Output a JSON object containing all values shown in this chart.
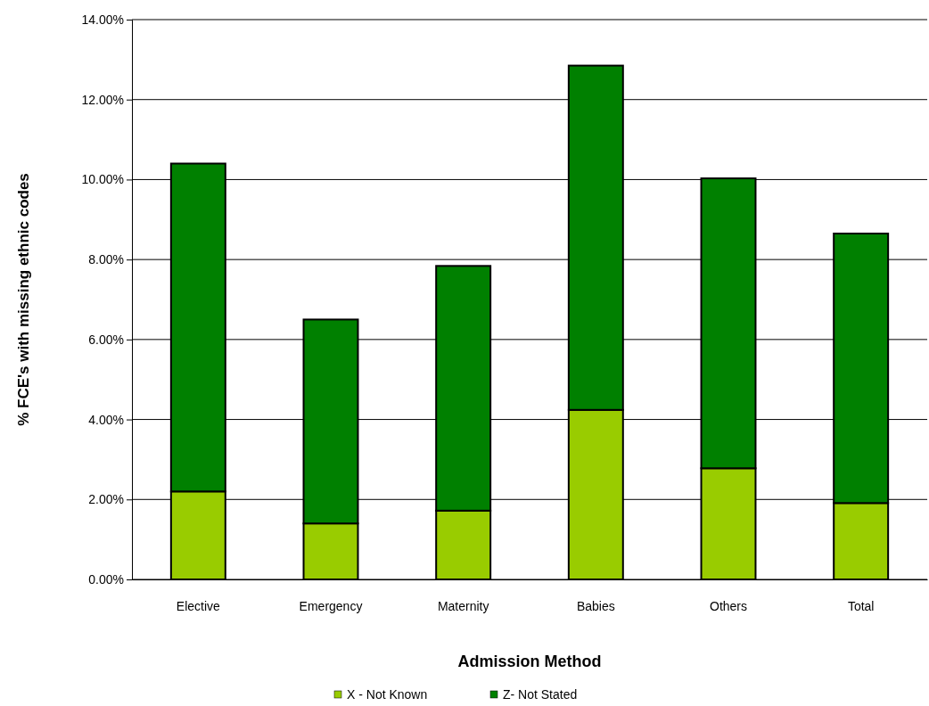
{
  "chart_data": {
    "type": "bar",
    "stacked": true,
    "xlabel": "Admission Method",
    "ylabel": "% FCE's with missing ethnic codes",
    "categories": [
      "Elective",
      "Emergency",
      "Maternity",
      "Babies",
      "Others",
      "Total"
    ],
    "series": [
      {
        "name": "X - Not Known",
        "color": "#99cc00",
        "values": [
          2.2,
          1.4,
          1.72,
          4.24,
          2.78,
          1.91
        ]
      },
      {
        "name": "Z- Not Stated",
        "color": "#008000",
        "values": [
          8.2,
          5.1,
          6.12,
          8.61,
          7.25,
          6.74
        ]
      }
    ],
    "ylim": [
      0,
      14
    ],
    "yticks": [
      {
        "value": 0,
        "label": "0.00%"
      },
      {
        "value": 2,
        "label": "2.00%"
      },
      {
        "value": 4,
        "label": "4.00%"
      },
      {
        "value": 6,
        "label": "6.00%"
      },
      {
        "value": 8,
        "label": "8.00%"
      },
      {
        "value": 10,
        "label": "10.00%"
      },
      {
        "value": 12,
        "label": "12.00%"
      },
      {
        "value": 14,
        "label": "14.00%"
      }
    ],
    "grid": "y",
    "legend": "bottom"
  }
}
